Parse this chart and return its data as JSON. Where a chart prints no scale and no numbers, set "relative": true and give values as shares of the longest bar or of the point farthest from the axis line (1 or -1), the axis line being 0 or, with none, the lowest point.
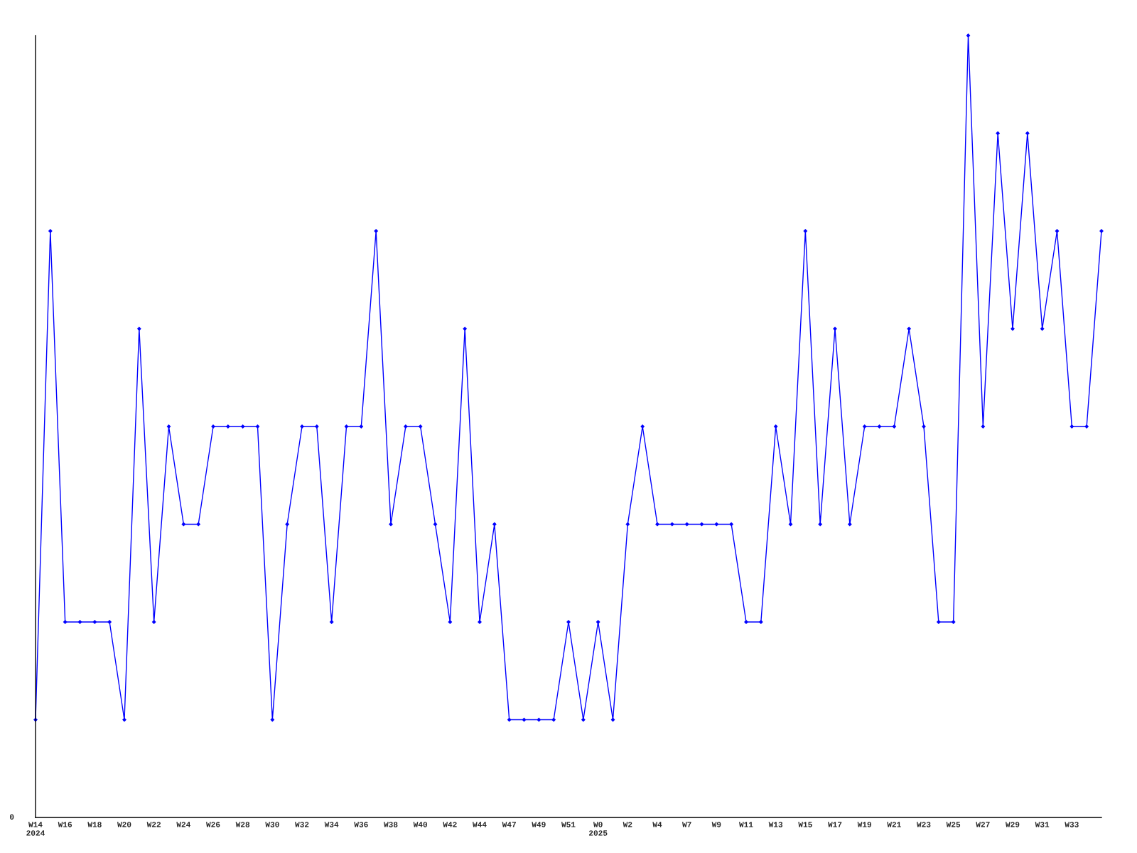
{
  "chart_data": {
    "type": "line",
    "relative": true,
    "categories": [
      "W14\n2024",
      null,
      "W16",
      null,
      "W18",
      null,
      "W20",
      null,
      "W22",
      null,
      "W24",
      null,
      "W26",
      null,
      "W28",
      null,
      "W30",
      null,
      "W32",
      null,
      "W34",
      null,
      "W36",
      null,
      "W38",
      null,
      "W40",
      null,
      "W42",
      null,
      "W44",
      null,
      "W47",
      null,
      "W49",
      null,
      "W51",
      null,
      "W0\n2025",
      null,
      "W2",
      null,
      "W4",
      null,
      "W7",
      null,
      "W9",
      null,
      "W11",
      null,
      "W13",
      null,
      "W15",
      null,
      "W17",
      null,
      "W19",
      null,
      "W21",
      null,
      "W23",
      null,
      "W25",
      null,
      "W27",
      null,
      "W29",
      null,
      "W31",
      null,
      "W33",
      null,
      null
    ],
    "series": [
      {
        "color": "#0000ff",
        "values": [
          0.125,
          0.75,
          0.25,
          0.25,
          0.25,
          0.25,
          0.125,
          0.625,
          0.25,
          0.5,
          0.375,
          0.375,
          0.5,
          0.5,
          0.5,
          0.5,
          0.125,
          0.375,
          0.5,
          0.5,
          0.25,
          0.5,
          0.5,
          0.75,
          0.375,
          0.5,
          0.5,
          0.375,
          0.25,
          0.625,
          0.25,
          0.375,
          0.125,
          0.125,
          0.125,
          0.125,
          0.25,
          0.125,
          0.25,
          0.125,
          0.375,
          0.5,
          0.375,
          0.375,
          0.375,
          0.375,
          0.375,
          0.375,
          0.25,
          0.25,
          0.5,
          0.375,
          0.75,
          0.375,
          0.625,
          0.375,
          0.5,
          0.5,
          0.5,
          0.625,
          0.5,
          0.25,
          0.25,
          1,
          0.5,
          0.875,
          0.625,
          0.875,
          0.625,
          0.75,
          0.5,
          0.5,
          0.75
        ]
      }
    ],
    "annotations": [
      "0"
    ],
    "marker": "diamond",
    "line_style": "solid",
    "grid": false,
    "legend": false
  }
}
